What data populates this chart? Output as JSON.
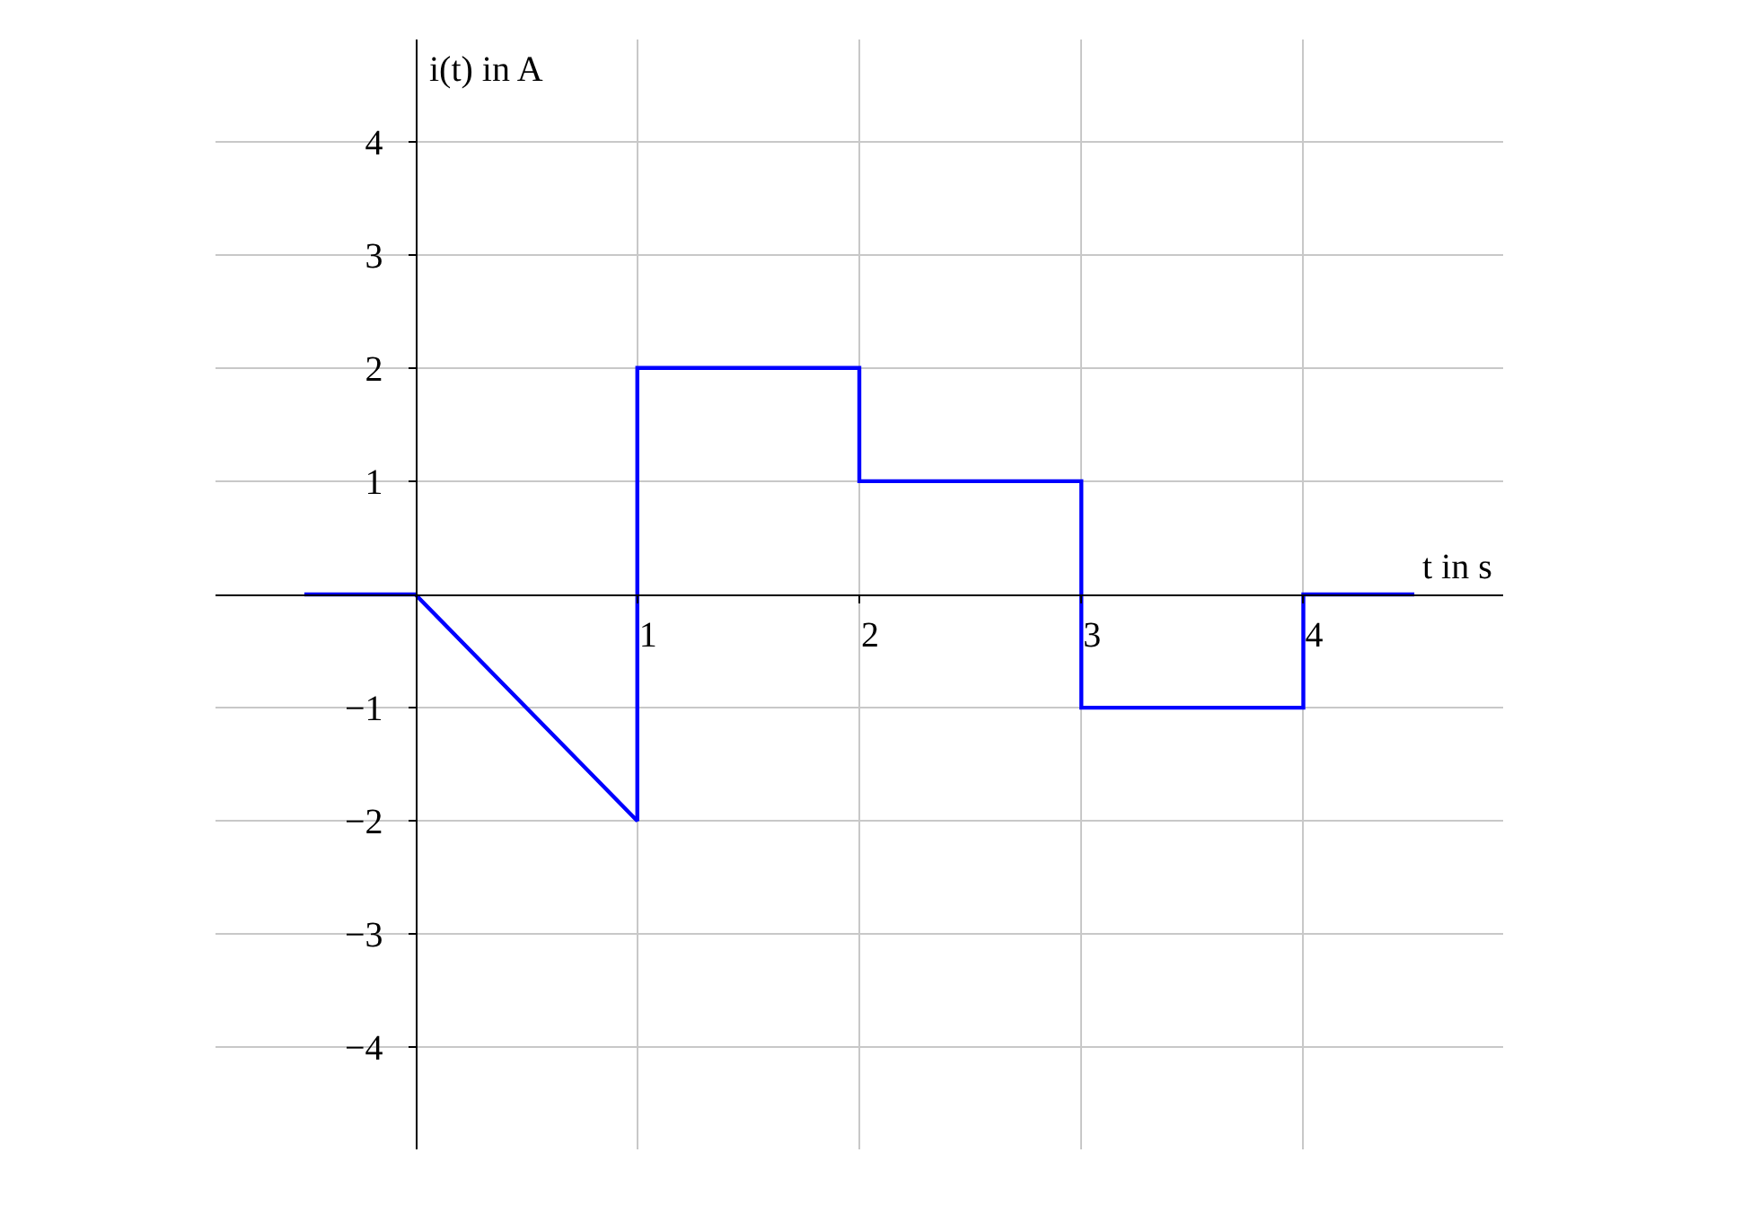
{
  "chart_data": {
    "type": "line",
    "xlabel": "t in s",
    "ylabel": "i(t) in A",
    "xlim": [
      -0.9,
      4.9
    ],
    "ylim": [
      -4.9,
      4.9
    ],
    "xticks": [
      1,
      2,
      3,
      4
    ],
    "yticks": [
      -4,
      -3,
      -2,
      -1,
      1,
      2,
      3,
      4
    ],
    "grid": true,
    "marker": "none",
    "line_style": "solid",
    "series": [
      {
        "color": "#0000ff",
        "x": [
          -0.5,
          0,
          1,
          1,
          2,
          2,
          3,
          3,
          4,
          4,
          4.5
        ],
        "values": [
          0,
          0,
          -2,
          2,
          2,
          1,
          1,
          -1,
          -1,
          0,
          0
        ]
      }
    ]
  }
}
